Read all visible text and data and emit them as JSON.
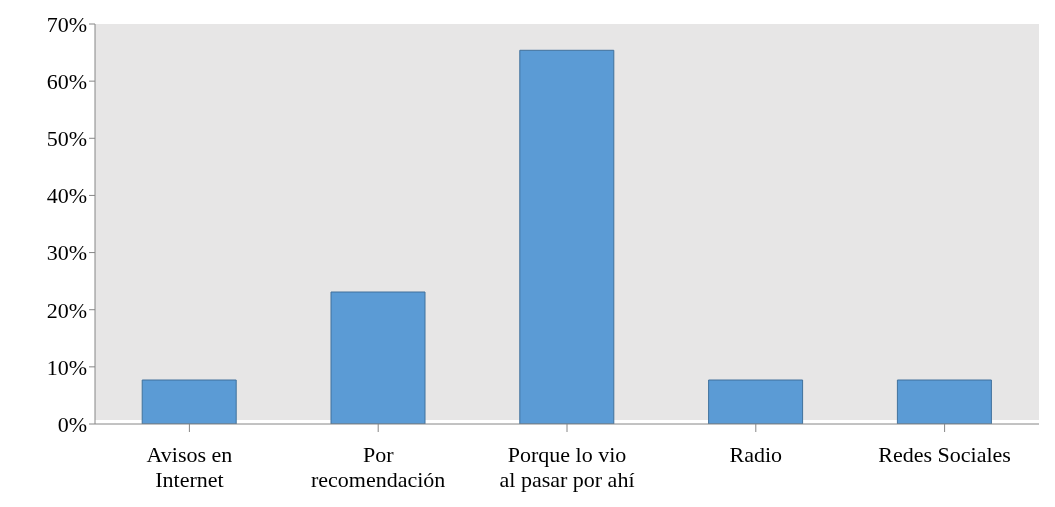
{
  "chart_data": {
    "type": "bar",
    "categories": [
      "Avisos en Internet",
      "Por recomendación",
      "Porque lo vio al pasar por ahí",
      "Radio",
      "Redes Sociales"
    ],
    "values": [
      7.7,
      23.1,
      65.4,
      7.7,
      7.7
    ],
    "color": "#5b9bd5",
    "ylim": [
      0,
      70
    ],
    "yticks": [
      {
        "value": 0,
        "label": "0%"
      },
      {
        "value": 10,
        "label": "10%"
      },
      {
        "value": 20,
        "label": "20%"
      },
      {
        "value": 30,
        "label": "30%"
      },
      {
        "value": 40,
        "label": "40%"
      },
      {
        "value": 50,
        "label": "50%"
      },
      {
        "value": 60,
        "label": "60%"
      },
      {
        "value": 70,
        "label": "70%"
      }
    ],
    "legend": false
  }
}
